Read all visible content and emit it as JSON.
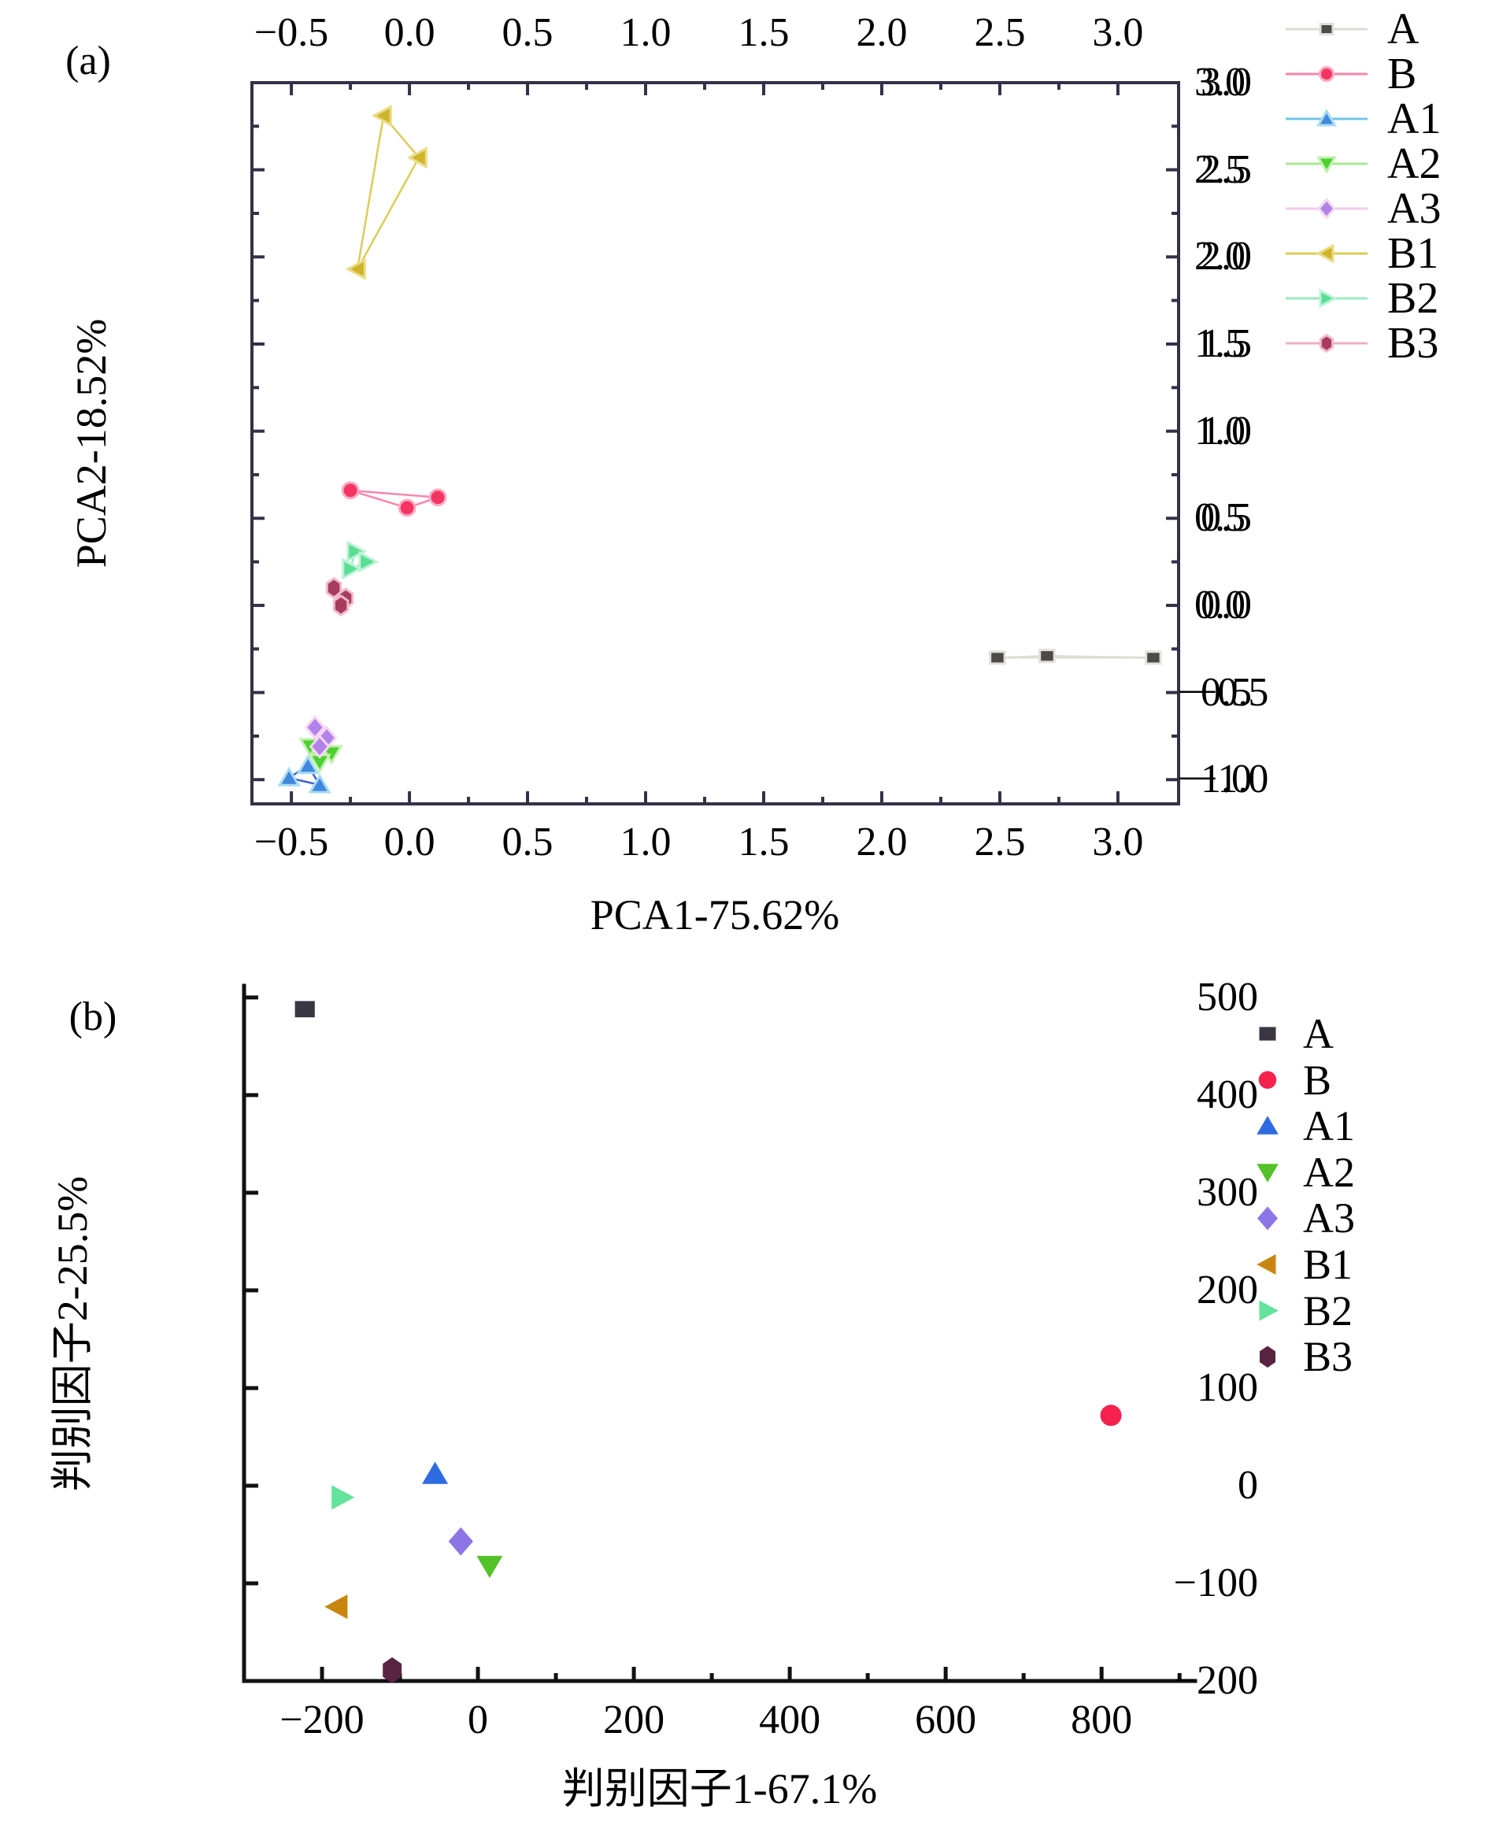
{
  "figure": {
    "background": "#ffffff",
    "axis_color_a": "#343048",
    "axis_color_b": "#111111",
    "text_color": "#000000"
  },
  "chart_data": [
    {
      "type": "scatter",
      "panel_tag": "(a)",
      "xlabel": "PCA1-75.62%",
      "ylabel": "PCA2-18.52%",
      "xlim": [
        -0.667,
        3.257
      ],
      "ylim": [
        -1.139,
        3.0
      ],
      "frame": "box",
      "grid": false,
      "legend_position": "outside-top-right",
      "xticks": [
        {
          "v": -0.5,
          "label": "−0.5"
        },
        {
          "v": 0.0,
          "label": "0.0"
        },
        {
          "v": 0.5,
          "label": "0.5"
        },
        {
          "v": 1.0,
          "label": "1.0"
        },
        {
          "v": 1.5,
          "label": "1.5"
        },
        {
          "v": 2.0,
          "label": "2.0"
        },
        {
          "v": 2.5,
          "label": "2.5"
        },
        {
          "v": 3.0,
          "label": "3.0"
        }
      ],
      "yticks": [
        {
          "v": 3.0,
          "label": "3.0"
        },
        {
          "v": 2.5,
          "label": "2.5"
        },
        {
          "v": 2.0,
          "label": "2.0"
        },
        {
          "v": 1.5,
          "label": "1.5"
        },
        {
          "v": 1.0,
          "label": "1.0"
        },
        {
          "v": 0.5,
          "label": "0.5"
        },
        {
          "v": 0.0,
          "label": "0.0"
        },
        {
          "v": -0.5,
          "label": "−0.5"
        },
        {
          "v": -1.0,
          "label": "−1.0"
        }
      ],
      "xminors": [
        -0.25,
        0.25,
        0.75,
        1.25,
        1.75,
        2.25,
        2.75
      ],
      "yminors": [
        2.75,
        2.25,
        1.75,
        1.25,
        0.75,
        0.25,
        -0.25,
        -0.75
      ],
      "series": [
        {
          "name": "A",
          "marker": "square",
          "marker_color": "#4c4b49",
          "edge_color": "#e2e1d8",
          "line_color": "#dedcd2",
          "points": [
            [
              2.49,
              -0.3
            ],
            [
              2.7,
              -0.29
            ],
            [
              3.15,
              -0.3
            ]
          ]
        },
        {
          "name": "B",
          "marker": "circle",
          "marker_color": "#f43562",
          "edge_color": "#fba9c4",
          "line_color": "#f786ad",
          "points": [
            [
              -0.25,
              0.66
            ],
            [
              -0.01,
              0.56
            ],
            [
              0.12,
              0.62
            ]
          ]
        },
        {
          "name": "A1",
          "marker": "triangle-up",
          "marker_color": "#4187de",
          "edge_color": "#a8dcf0",
          "line_color": "#70c6e8",
          "plot_line_color": "#3e5fd0",
          "points": [
            [
              -0.51,
              -0.99
            ],
            [
              -0.43,
              -0.92
            ],
            [
              -0.38,
              -1.03
            ]
          ]
        },
        {
          "name": "A2",
          "marker": "triangle-down",
          "marker_color": "#4bd02e",
          "edge_color": "#c2f0b0",
          "line_color": "#a8e992",
          "points": [
            [
              -0.42,
              -0.81
            ],
            [
              -0.33,
              -0.85
            ],
            [
              -0.38,
              -0.9
            ]
          ]
        },
        {
          "name": "A3",
          "marker": "diamond",
          "marker_color": "#b183e9",
          "edge_color": "#f6d6f2",
          "line_color": "#f3cbec",
          "points": [
            [
              -0.4,
              -0.7
            ],
            [
              -0.35,
              -0.76
            ],
            [
              -0.38,
              -0.81
            ]
          ]
        },
        {
          "name": "B1",
          "marker": "triangle-left",
          "marker_color": "#cfb42c",
          "edge_color": "#eadc85",
          "line_color": "#decb57",
          "points": [
            [
              -0.11,
              2.81
            ],
            [
              0.04,
              2.57
            ],
            [
              -0.22,
              1.93
            ]
          ]
        },
        {
          "name": "B2",
          "marker": "triangle-right",
          "marker_color": "#59de94",
          "edge_color": "#bdf2d6",
          "line_color": "#97ecbf",
          "points": [
            [
              -0.23,
              0.31
            ],
            [
              -0.18,
              0.25
            ],
            [
              -0.25,
              0.21
            ]
          ]
        },
        {
          "name": "B3",
          "marker": "hexagon",
          "marker_color": "#a63c5e",
          "edge_color": "#f3b9cd",
          "line_color": "#f0aec6",
          "points": [
            [
              -0.32,
              0.1
            ],
            [
              -0.27,
              0.04
            ],
            [
              -0.29,
              0.0
            ]
          ]
        }
      ]
    },
    {
      "type": "scatter",
      "panel_tag": "(b)",
      "xlabel": "判别因子1-67.1%",
      "ylabel": "判别因子2-25.5%",
      "xlim": [
        -300,
        920
      ],
      "ylim": [
        -200,
        512
      ],
      "frame": "left-bottom",
      "grid": false,
      "legend_position": "outside-right",
      "xticks": [
        {
          "v": -200,
          "label": "−200"
        },
        {
          "v": 0,
          "label": "0"
        },
        {
          "v": 200,
          "label": "200"
        },
        {
          "v": 400,
          "label": "400"
        },
        {
          "v": 600,
          "label": "600"
        },
        {
          "v": 800,
          "label": "800"
        }
      ],
      "yticks": [
        {
          "v": 500,
          "label": "500"
        },
        {
          "v": 400,
          "label": "400"
        },
        {
          "v": 300,
          "label": "300"
        },
        {
          "v": 200,
          "label": "200"
        },
        {
          "v": 100,
          "label": "100"
        },
        {
          "v": 0,
          "label": "0"
        },
        {
          "v": -100,
          "label": "−100"
        },
        {
          "v": -200,
          "label": "−200"
        }
      ],
      "xminors": [
        -100,
        100,
        300,
        500,
        700,
        900
      ],
      "yminors": [],
      "series": [
        {
          "name": "A",
          "marker": "square",
          "marker_color": "#3a3644",
          "points": [
            [
              -222,
              488
            ]
          ]
        },
        {
          "name": "B",
          "marker": "circle",
          "marker_color": "#f5224e",
          "points": [
            [
              812,
              72
            ]
          ]
        },
        {
          "name": "A1",
          "marker": "triangle-up",
          "marker_color": "#2e6be0",
          "points": [
            [
              -55,
              12
            ]
          ]
        },
        {
          "name": "A2",
          "marker": "triangle-down",
          "marker_color": "#52c228",
          "points": [
            [
              15,
              -82
            ]
          ]
        },
        {
          "name": "A3",
          "marker": "diamond",
          "marker_color": "#8d75e6",
          "points": [
            [
              -22,
              -57
            ]
          ]
        },
        {
          "name": "B1",
          "marker": "triangle-left",
          "marker_color": "#c8860f",
          "points": [
            [
              -180,
              -124
            ]
          ]
        },
        {
          "name": "B2",
          "marker": "triangle-right",
          "marker_color": "#63e39c",
          "points": [
            [
              -175,
              -12
            ]
          ]
        },
        {
          "name": "B3",
          "marker": "hexagon",
          "marker_color": "#592441",
          "points": [
            [
              -110,
              -189
            ]
          ]
        }
      ]
    }
  ]
}
